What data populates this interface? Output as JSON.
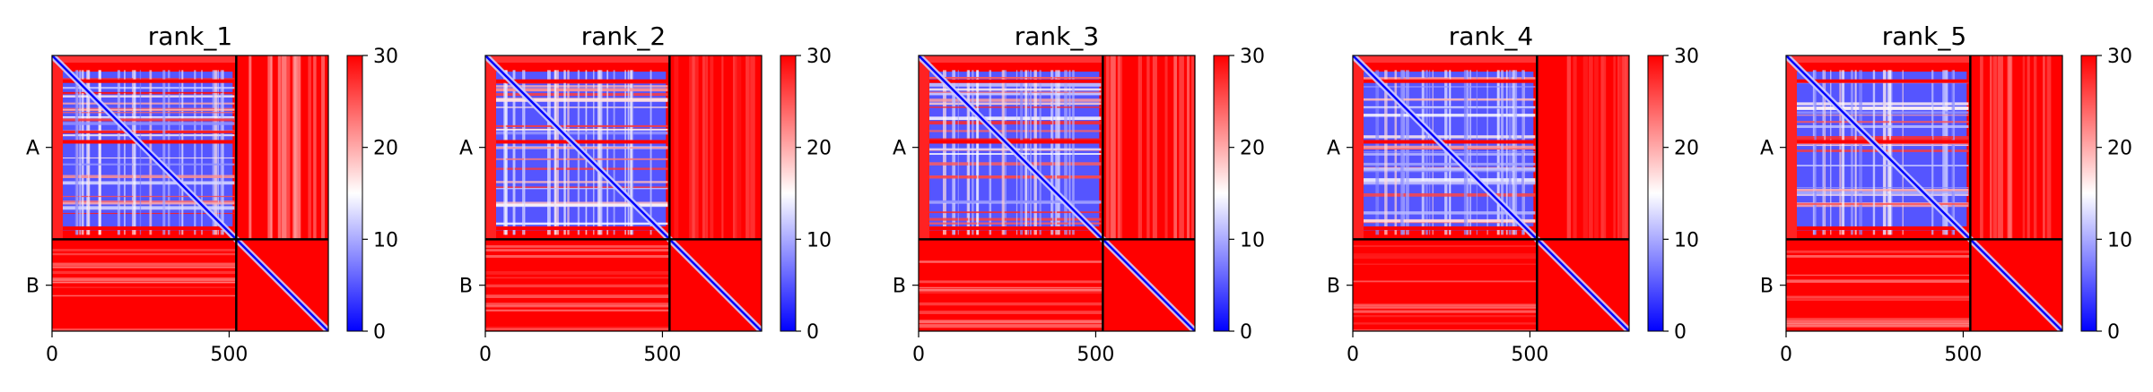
{
  "chart_data": {
    "type": "heatmap",
    "description_kind": "predicted aligned error (PAE) matrices",
    "x_ticks": [
      0,
      500
    ],
    "y_ticks": [
      "A",
      "B"
    ],
    "chain_boundary": 520,
    "matrix_size": 780,
    "colorbar": {
      "min": 0,
      "max": 30,
      "ticks": [
        0,
        10,
        20,
        30
      ],
      "colormap": [
        "#0000ff",
        "#ffffff",
        "#ff0000"
      ]
    },
    "panels": [
      {
        "title": "rank_1",
        "ab_fill": 25,
        "ba_fill": 26
      },
      {
        "title": "rank_2",
        "ab_fill": 29,
        "ba_fill": 28
      },
      {
        "title": "rank_3",
        "ab_fill": 27,
        "ba_fill": 27
      },
      {
        "title": "rank_4",
        "ab_fill": 29,
        "ba_fill": 29
      },
      {
        "title": "rank_5",
        "ab_fill": 28,
        "ba_fill": 28
      }
    ]
  }
}
